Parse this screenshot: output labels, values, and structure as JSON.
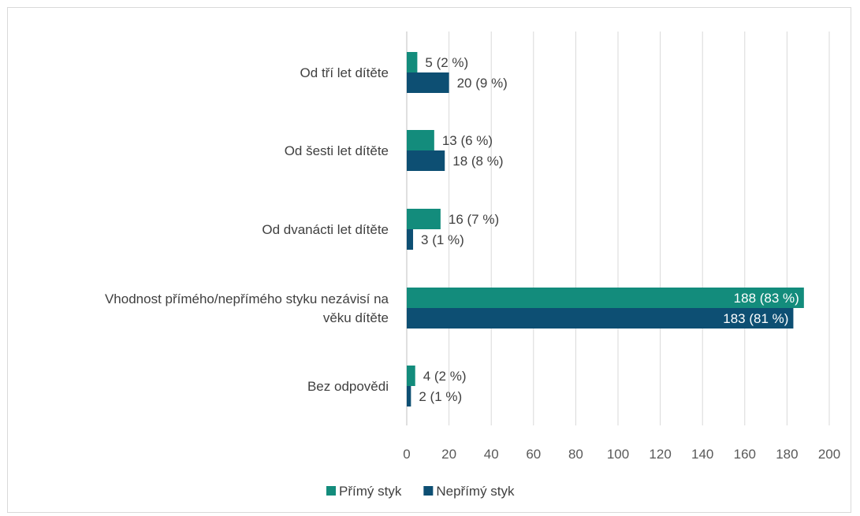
{
  "chart_data": {
    "type": "bar",
    "orientation": "horizontal",
    "categories": [
      [
        "Od tří let dítěte"
      ],
      [
        "Od šesti let dítěte"
      ],
      [
        "Od dvanácti let dítěte"
      ],
      [
        "Vhodnost přímého/nepřímého styku nezávisí na",
        "věku dítěte"
      ],
      [
        "Bez odpovědi"
      ]
    ],
    "series": [
      {
        "name": "Přímý styk",
        "color": "#138c7c",
        "values": [
          5,
          13,
          16,
          188,
          4
        ],
        "labels": [
          "5 (2 %)",
          "13 (6 %)",
          "16 (7 %)",
          "188 (83 %)",
          "4 (2 %)"
        ]
      },
      {
        "name": "Nepřímý styk",
        "color": "#0d4f73",
        "values": [
          20,
          18,
          3,
          183,
          2
        ],
        "labels": [
          "20 (9 %)",
          "18 (8 %)",
          "3 (1 %)",
          "183 (81 %)",
          "2 (1 %)"
        ]
      }
    ],
    "xlim": [
      0,
      200
    ],
    "xticks": [
      0,
      20,
      40,
      60,
      80,
      100,
      120,
      140,
      160,
      180,
      200
    ],
    "grid": true,
    "legend_position": "bottom"
  }
}
